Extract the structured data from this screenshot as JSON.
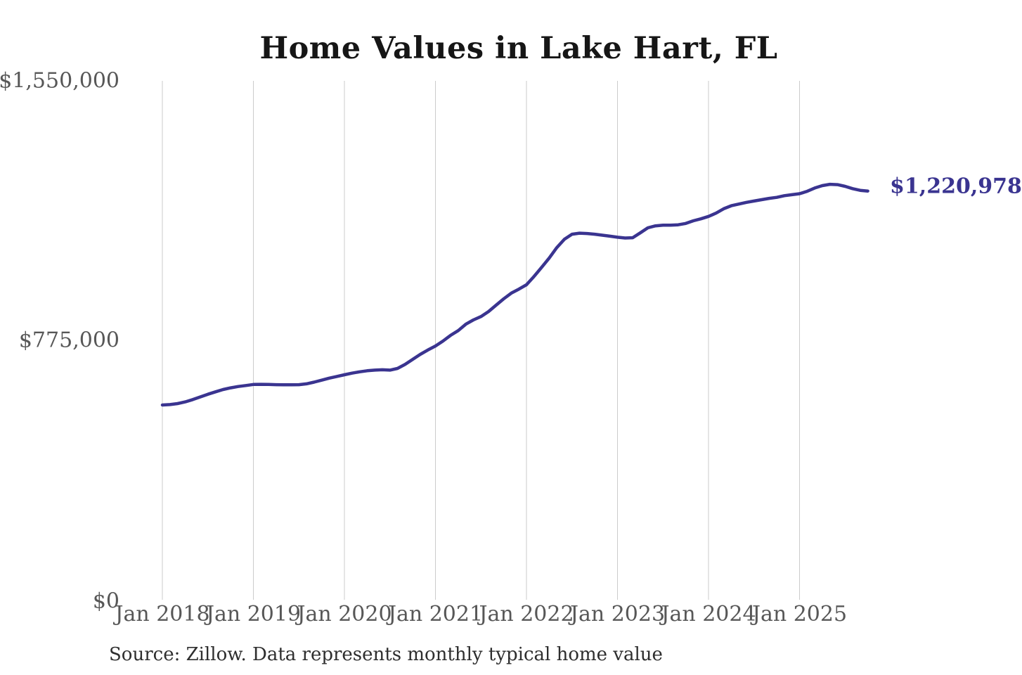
{
  "page": {
    "background": "#ffffff"
  },
  "chart": {
    "title": "Home Values in Lake Hart, FL",
    "end_label": "$1,220,978",
    "source": "Source: Zillow. Data represents monthly typical home value",
    "colors": {
      "line": "#3a3490",
      "end_label": "#3a3490",
      "grid": "#cbcbcb",
      "axis_text": "#575757",
      "title_text": "#161616",
      "source_text": "#2e2e2e",
      "background": "#ffffff"
    }
  },
  "chart_data": {
    "type": "line",
    "title": "Home Values in Lake Hart, FL",
    "source": "Source: Zillow. Data represents monthly typical home value",
    "x_unit": "month",
    "x_start": "2018-01",
    "x_end": "2025-10",
    "x_tick_labels": [
      "Jan 2018",
      "Jan 2019",
      "Jan 2020",
      "Jan 2021",
      "Jan 2022",
      "Jan 2023",
      "Jan 2024",
      "Jan 2025"
    ],
    "y_tick_labels": [
      "$0",
      "$775,000",
      "$1,550,000"
    ],
    "y_tick_values": [
      0,
      775000,
      1550000
    ],
    "ylim": [
      0,
      1550000
    ],
    "grid": "vertical",
    "legend": "none",
    "annotation": {
      "text": "$1,220,978",
      "value": 1220978,
      "position": "line-end"
    },
    "series": [
      {
        "name": "Monthly typical home value",
        "values": [
          581700,
          583000,
          586000,
          591000,
          598000,
          606000,
          614000,
          621000,
          628000,
          633000,
          637000,
          640000,
          643000,
          643500,
          643000,
          642500,
          642000,
          642000,
          642500,
          645000,
          650000,
          656000,
          662000,
          667000,
          672000,
          677000,
          681000,
          684000,
          686000,
          687000,
          686000,
          691000,
          703000,
          718000,
          733000,
          746000,
          758000,
          773000,
          790000,
          804000,
          823000,
          836000,
          846000,
          861000,
          880000,
          899000,
          916000,
          928000,
          941000,
          966000,
          993000,
          1021000,
          1052000,
          1077000,
          1092000,
          1095000,
          1094000,
          1092000,
          1089000,
          1086000,
          1083000,
          1080500,
          1081500,
          1096000,
          1111000,
          1117000,
          1119000,
          1119000,
          1120000,
          1124000,
          1132000,
          1138000,
          1145000,
          1155000,
          1168000,
          1177000,
          1182000,
          1187000,
          1191000,
          1195000,
          1199000,
          1202000,
          1207000,
          1210000,
          1213000,
          1220000,
          1230000,
          1237000,
          1241000,
          1240000,
          1235000,
          1228000,
          1223000,
          1220978
        ]
      }
    ]
  }
}
